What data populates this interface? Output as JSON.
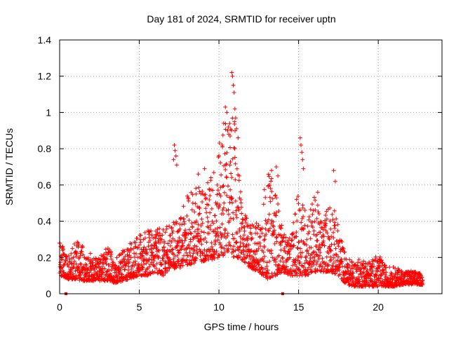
{
  "chart_data": {
    "type": "scatter",
    "title": "Day 181 of 2024, SRMTID for receiver uptn",
    "xlabel": "GPS time / hours",
    "ylabel": "SRMTID / TECUs",
    "xlim": [
      0,
      24
    ],
    "ylim": [
      0,
      1.4
    ],
    "x_ticks": [
      0,
      5,
      10,
      15,
      20
    ],
    "x_tick_labels": [
      "0",
      "5",
      "10",
      "15",
      "20"
    ],
    "y_ticks": [
      0,
      0.2,
      0.4,
      0.6,
      0.8,
      1.0,
      1.2,
      1.4
    ],
    "y_tick_labels": [
      "0",
      "0.2",
      "0.4",
      "0.6",
      "0.8",
      "1",
      "1.2",
      "1.4"
    ],
    "grid": true,
    "marker": "plus",
    "color": "#ff0000",
    "series": [
      {
        "name": "SRMTID",
        "envelope_hours": [
          0.0,
          0.5,
          1.0,
          1.5,
          2.0,
          2.5,
          3.0,
          3.5,
          4.0,
          4.5,
          5.0,
          5.5,
          6.0,
          6.5,
          7.0,
          7.5,
          8.0,
          8.5,
          9.0,
          9.5,
          10.0,
          10.5,
          11.0,
          11.5,
          12.0,
          12.5,
          13.0,
          13.5,
          14.0,
          14.5,
          15.0,
          15.5,
          16.0,
          16.5,
          17.0,
          17.5,
          18.0,
          18.5,
          19.0,
          19.5,
          20.0,
          20.5,
          21.0,
          21.5,
          22.0,
          22.5,
          22.8
        ],
        "envelope_low": [
          0.1,
          0.08,
          0.08,
          0.07,
          0.07,
          0.07,
          0.07,
          0.06,
          0.07,
          0.08,
          0.1,
          0.1,
          0.12,
          0.1,
          0.14,
          0.14,
          0.16,
          0.16,
          0.18,
          0.18,
          0.2,
          0.22,
          0.2,
          0.18,
          0.14,
          0.12,
          0.08,
          0.1,
          0.12,
          0.1,
          0.1,
          0.1,
          0.12,
          0.12,
          0.12,
          0.1,
          0.05,
          0.04,
          0.04,
          0.04,
          0.04,
          0.04,
          0.04,
          0.05,
          0.05,
          0.05,
          0.05
        ],
        "envelope_high": [
          0.32,
          0.2,
          0.3,
          0.26,
          0.22,
          0.2,
          0.26,
          0.2,
          0.25,
          0.3,
          0.32,
          0.36,
          0.37,
          0.36,
          0.42,
          0.4,
          0.55,
          0.6,
          0.6,
          0.65,
          0.82,
          1.02,
          0.95,
          0.45,
          0.4,
          0.4,
          0.68,
          0.62,
          0.35,
          0.3,
          0.6,
          0.45,
          0.55,
          0.4,
          0.55,
          0.38,
          0.2,
          0.18,
          0.2,
          0.18,
          0.22,
          0.15,
          0.15,
          0.13,
          0.13,
          0.12,
          0.1
        ],
        "outliers": [
          [
            7.2,
            0.82
          ],
          [
            7.25,
            0.79
          ],
          [
            7.3,
            0.76
          ],
          [
            7.15,
            0.74
          ],
          [
            7.35,
            0.71
          ],
          [
            8.7,
            0.66
          ],
          [
            9.1,
            0.69
          ],
          [
            9.5,
            0.64
          ],
          [
            10.3,
            0.94
          ],
          [
            10.4,
            1.03
          ],
          [
            10.5,
            1.0
          ],
          [
            10.6,
            0.92
          ],
          [
            10.7,
            0.87
          ],
          [
            10.8,
            1.22
          ],
          [
            10.85,
            1.2
          ],
          [
            10.9,
            1.15
          ],
          [
            10.95,
            1.11
          ],
          [
            11.0,
            1.02
          ],
          [
            11.05,
            0.97
          ],
          [
            11.1,
            0.91
          ],
          [
            11.2,
            0.86
          ],
          [
            10.2,
            0.82
          ],
          [
            13.3,
            0.68
          ],
          [
            13.6,
            0.7
          ],
          [
            13.7,
            0.65
          ],
          [
            15.1,
            0.86
          ],
          [
            15.15,
            0.82
          ],
          [
            15.2,
            0.78
          ],
          [
            15.25,
            0.74
          ],
          [
            15.3,
            0.69
          ],
          [
            16.2,
            0.56
          ],
          [
            17.2,
            0.68
          ],
          [
            17.3,
            0.62
          ]
        ],
        "zero_points": [
          0.4,
          14.0
        ]
      }
    ]
  }
}
